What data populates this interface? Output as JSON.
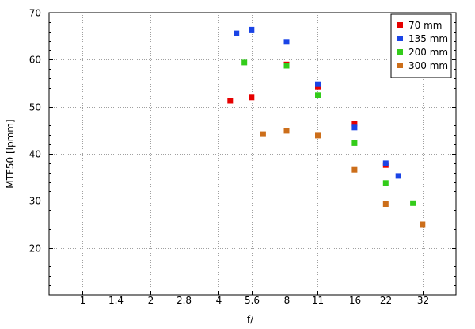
{
  "chart_data": {
    "type": "scatter",
    "xlabel": "f/",
    "ylabel": "MTF50 [lpmm]",
    "x_scale": "log2",
    "x_ticks": [
      1,
      1.4,
      2,
      2.8,
      4,
      5.6,
      8,
      11,
      16,
      22,
      32
    ],
    "x_tick_labels": [
      "1",
      "1.4",
      "2",
      "2.8",
      "4",
      "5.6",
      "8",
      "11",
      "16",
      "22",
      "32"
    ],
    "xlim": [
      0.71,
      45
    ],
    "ylim": [
      10,
      70
    ],
    "y_ticks": [
      20,
      30,
      40,
      50,
      60,
      70
    ],
    "y_tick_labels": [
      "20",
      "30",
      "40",
      "50",
      "60",
      "70"
    ],
    "grid": true,
    "legend_position": "top-right",
    "series": [
      {
        "name": "70 mm",
        "color": "#e60000",
        "points": [
          [
            4.5,
            51.3
          ],
          [
            5.6,
            52.0
          ],
          [
            8,
            59.0
          ],
          [
            11,
            54.3
          ],
          [
            16,
            46.4
          ],
          [
            22,
            37.6
          ]
        ]
      },
      {
        "name": "135 mm",
        "color": "#1a44e6",
        "points": [
          [
            4.8,
            65.6
          ],
          [
            5.6,
            66.4
          ],
          [
            8,
            63.8
          ],
          [
            11,
            54.8
          ],
          [
            16,
            45.6
          ],
          [
            22,
            38.0
          ],
          [
            25,
            35.3
          ]
        ]
      },
      {
        "name": "200 mm",
        "color": "#33cc1a",
        "points": [
          [
            5.2,
            59.4
          ],
          [
            8,
            58.7
          ],
          [
            11,
            52.5
          ],
          [
            16,
            42.3
          ],
          [
            22,
            33.8
          ],
          [
            29,
            29.5
          ]
        ]
      },
      {
        "name": "300 mm",
        "color": "#cc6e1a",
        "points": [
          [
            6.3,
            44.2
          ],
          [
            8,
            44.9
          ],
          [
            11,
            43.9
          ],
          [
            16,
            36.6
          ],
          [
            22,
            29.3
          ],
          [
            32,
            25.0
          ]
        ]
      }
    ]
  }
}
